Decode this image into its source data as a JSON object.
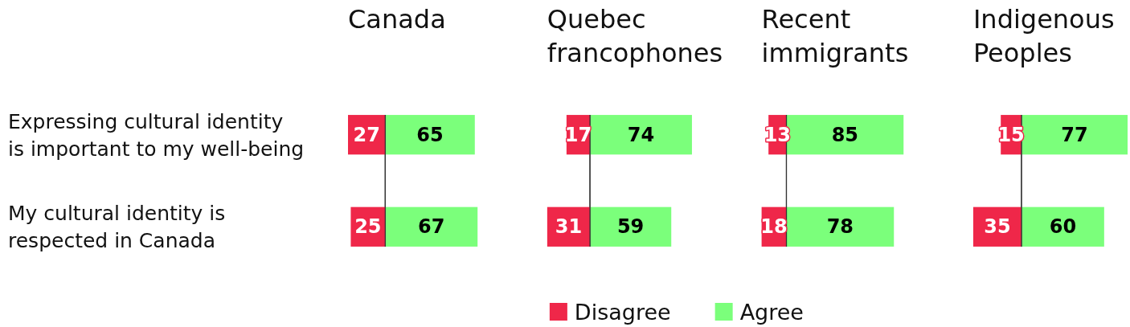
{
  "chart_data": [
    {
      "type": "bar",
      "orientation": "horizontal",
      "data_labels": true,
      "title": "Canada",
      "categories": [
        "Expressing cultural identity\nis important to my well-being",
        "My cultural identity is\nrespected in Canada"
      ],
      "series": [
        {
          "color": "#ef2749",
          "values": [
            27,
            25
          ]
        }
      ],
      "xlim": [
        27,
        0
      ]
    },
    {
      "type": "bar",
      "orientation": "horizontal",
      "data_labels": true,
      "categories": [
        null,
        null
      ],
      "series": [
        {
          "color": "#7bff7b",
          "values": [
            65,
            67
          ]
        }
      ]
    },
    {
      "type": "bar",
      "orientation": "horizontal",
      "data_labels": true,
      "title": "Quebec\nfrancophones",
      "categories": [
        null,
        null
      ],
      "series": [
        {
          "name": "Disagree",
          "color": "#ef2749",
          "values": [
            17,
            31
          ]
        }
      ],
      "xlim": [
        31,
        0
      ],
      "legend": "bottom"
    },
    {
      "type": "bar",
      "orientation": "horizontal",
      "data_labels": true,
      "categories": [
        null,
        null
      ],
      "series": [
        {
          "name": "Agree",
          "color": "#7bff7b",
          "values": [
            74,
            59
          ]
        }
      ],
      "legend": "bottom"
    },
    {
      "type": "bar",
      "orientation": "horizontal",
      "data_labels": true,
      "title": "Recent\nimmigrants",
      "categories": [
        null,
        null
      ],
      "series": [
        {
          "color": "#ef2749",
          "values": [
            13,
            18
          ]
        }
      ],
      "xlim": [
        18,
        0
      ]
    },
    {
      "type": "bar",
      "orientation": "horizontal",
      "data_labels": true,
      "categories": [
        null,
        null
      ],
      "series": [
        {
          "color": "#7bff7b",
          "values": [
            85,
            78
          ]
        }
      ]
    },
    {
      "type": "bar",
      "orientation": "horizontal",
      "data_labels": true,
      "title": "Indigenous\nPeoples",
      "categories": [
        null,
        null
      ],
      "series": [
        {
          "color": "#ef2749",
          "values": [
            15,
            35
          ]
        }
      ],
      "xlim": [
        35,
        0
      ]
    },
    {
      "type": "bar",
      "orientation": "horizontal",
      "data_labels": true,
      "categories": [
        null,
        null
      ],
      "series": [
        {
          "color": "#7bff7b",
          "values": [
            77,
            60
          ]
        }
      ]
    }
  ]
}
